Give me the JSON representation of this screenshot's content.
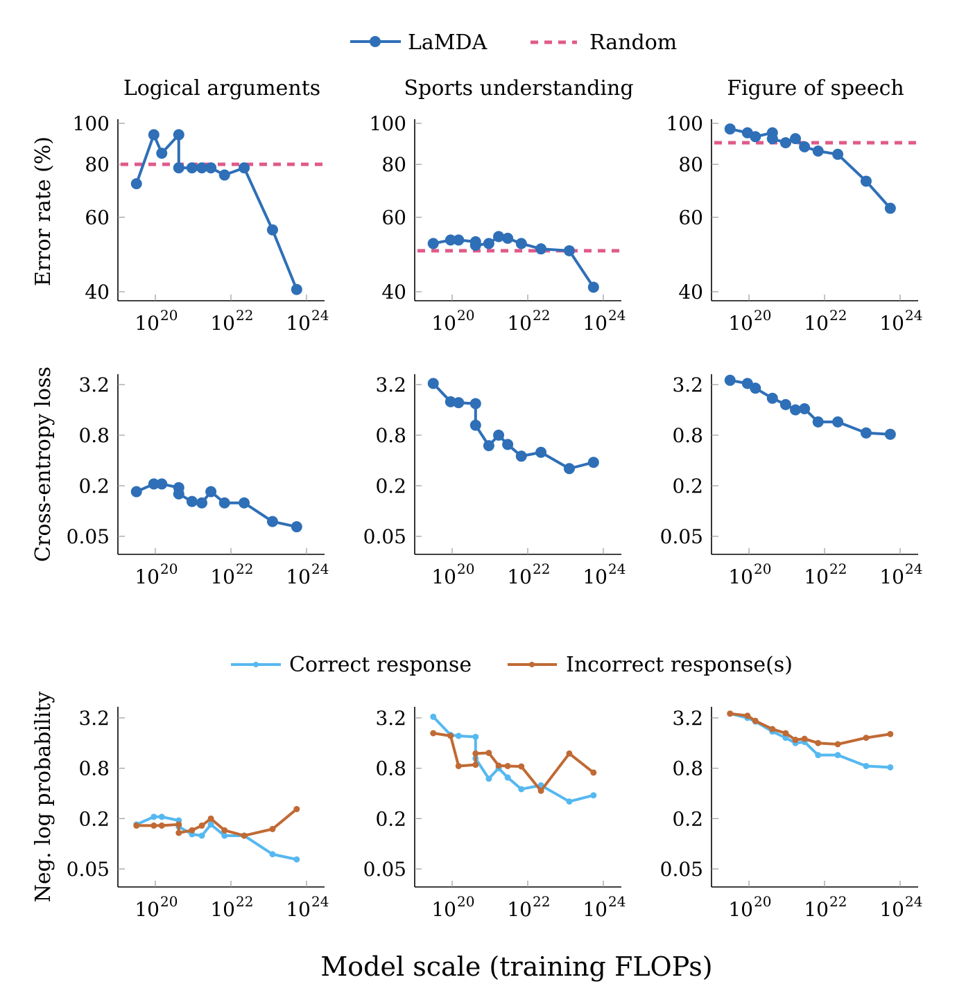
{
  "chart_data": {
    "type": "line",
    "xscale": "log",
    "yscale": "log",
    "xlabel": "Model scale (training FLOPs)",
    "x_ticks": [
      1e+20,
      1e+22,
      1e+24
    ],
    "x_tick_labels": [
      "10",
      "10",
      "10"
    ],
    "x_tick_exponents": [
      "20",
      "22",
      "24"
    ],
    "xlim_log10": [
      19.1,
      24.5
    ],
    "x_log10": [
      19.5,
      19.96,
      20.17,
      20.62,
      20.62,
      20.97,
      21.23,
      21.47,
      21.83,
      22.35,
      23.1,
      23.74
    ],
    "legend_top": [
      {
        "name": "LaMDA",
        "color": "#2E6FB7",
        "style": "solid-marker"
      },
      {
        "name": "Random",
        "color": "#E05A8A",
        "style": "dashed"
      }
    ],
    "legend_bottom": [
      {
        "name": "Correct response",
        "color": "#56B8F0",
        "style": "solid-small-marker"
      },
      {
        "name": "Incorrect response(s)",
        "color": "#C06A35",
        "style": "solid-small-marker"
      }
    ],
    "columns": [
      "Logical arguments",
      "Sports understanding",
      "Figure of speech"
    ],
    "rows": [
      {
        "ylabel": "Error rate (%)",
        "yticks": [
          40,
          60,
          80,
          100
        ],
        "ytick_labels": [
          "40",
          "60",
          "80",
          "100"
        ],
        "ylim": [
          37.5,
          105
        ],
        "panels": [
          {
            "title": "Logical arguments",
            "random": 80,
            "series": [
              {
                "name": "LaMDA",
                "color": "#2E6FB7",
                "x_log10": [
                  19.5,
                  19.96,
                  20.17,
                  20.62,
                  20.62,
                  20.97,
                  21.23,
                  21.47,
                  21.83,
                  22.35,
                  23.1,
                  23.74
                ],
                "values": [
                  72,
                  94,
                  85,
                  94,
                  78.5,
                  78.5,
                  78.5,
                  78.5,
                  75.5,
                  78.5,
                  56,
                  40.5
                ]
              }
            ]
          },
          {
            "title": "Sports understanding",
            "random": 50,
            "series": [
              {
                "name": "LaMDA",
                "color": "#2E6FB7",
                "x_log10": [
                  19.5,
                  19.96,
                  20.17,
                  20.62,
                  20.62,
                  20.97,
                  21.23,
                  21.47,
                  21.83,
                  22.35,
                  23.1,
                  23.74
                ],
                "values": [
                  52,
                  53,
                  53,
                  52.5,
                  51.5,
                  52,
                  54,
                  53.5,
                  52,
                  50.5,
                  50,
                  41
                ]
              }
            ]
          },
          {
            "title": "Figure of speech",
            "random": 90,
            "series": [
              {
                "name": "LaMDA",
                "color": "#2E6FB7",
                "x_log10": [
                  19.5,
                  19.96,
                  20.17,
                  20.62,
                  20.62,
                  20.97,
                  21.23,
                  21.47,
                  21.83,
                  22.35,
                  23.1,
                  23.74
                ],
                "values": [
                  97,
                  95,
                  93,
                  95,
                  92,
                  90,
                  92,
                  88,
                  86,
                  84.5,
                  73,
                  63
                ]
              }
            ]
          }
        ]
      },
      {
        "ylabel": "Cross-entropy loss",
        "yticks": [
          0.05,
          0.2,
          0.8,
          3.2
        ],
        "ytick_labels": [
          "0.05",
          "0.2",
          "0.8",
          "3.2"
        ],
        "ylim": [
          0.03,
          4.5
        ],
        "panels": [
          {
            "title": "Logical arguments",
            "series": [
              {
                "name": "LaMDA",
                "color": "#2E6FB7",
                "x_log10": [
                  19.5,
                  19.96,
                  20.17,
                  20.62,
                  20.62,
                  20.97,
                  21.23,
                  21.47,
                  21.83,
                  22.35,
                  23.1,
                  23.74
                ],
                "values": [
                  0.17,
                  0.21,
                  0.21,
                  0.19,
                  0.16,
                  0.13,
                  0.125,
                  0.17,
                  0.125,
                  0.125,
                  0.075,
                  0.065
                ]
              }
            ]
          },
          {
            "title": "Sports understanding",
            "series": [
              {
                "name": "LaMDA",
                "color": "#2E6FB7",
                "x_log10": [
                  19.5,
                  19.96,
                  20.17,
                  20.62,
                  20.62,
                  20.97,
                  21.23,
                  21.47,
                  21.83,
                  22.35,
                  23.1,
                  23.74
                ],
                "values": [
                  3.3,
                  2.0,
                  1.95,
                  1.9,
                  1.05,
                  0.6,
                  0.8,
                  0.62,
                  0.45,
                  0.5,
                  0.32,
                  0.38
                ]
              }
            ]
          },
          {
            "title": "Figure of speech",
            "series": [
              {
                "name": "LaMDA",
                "color": "#2E6FB7",
                "x_log10": [
                  19.5,
                  19.96,
                  20.17,
                  20.62,
                  20.97,
                  21.23,
                  21.47,
                  21.83,
                  22.35,
                  23.1,
                  23.74
                ],
                "values": [
                  3.6,
                  3.3,
                  2.9,
                  2.2,
                  1.85,
                  1.6,
                  1.65,
                  1.15,
                  1.15,
                  0.85,
                  0.82
                ]
              }
            ]
          }
        ]
      },
      {
        "ylabel": "Neg. log probability",
        "yticks": [
          0.05,
          0.2,
          0.8,
          3.2
        ],
        "ytick_labels": [
          "0.05",
          "0.2",
          "0.8",
          "3.2"
        ],
        "ylim": [
          0.03,
          4.5
        ],
        "panels": [
          {
            "title": "Logical arguments",
            "series": [
              {
                "name": "Correct response",
                "color": "#56B8F0",
                "x_log10": [
                  19.5,
                  19.96,
                  20.17,
                  20.62,
                  20.62,
                  20.97,
                  21.23,
                  21.47,
                  21.83,
                  22.35,
                  23.1,
                  23.74
                ],
                "values": [
                  0.17,
                  0.21,
                  0.21,
                  0.19,
                  0.16,
                  0.13,
                  0.125,
                  0.17,
                  0.125,
                  0.125,
                  0.075,
                  0.065
                ]
              },
              {
                "name": "Incorrect response(s)",
                "color": "#C06A35",
                "x_log10": [
                  19.5,
                  19.96,
                  20.17,
                  20.62,
                  20.62,
                  20.97,
                  21.23,
                  21.47,
                  21.83,
                  22.35,
                  23.1,
                  23.74
                ],
                "values": [
                  0.165,
                  0.165,
                  0.165,
                  0.17,
                  0.135,
                  0.145,
                  0.165,
                  0.2,
                  0.145,
                  0.125,
                  0.15,
                  0.26
                ]
              }
            ]
          },
          {
            "title": "Sports understanding",
            "series": [
              {
                "name": "Correct response",
                "color": "#56B8F0",
                "x_log10": [
                  19.5,
                  19.96,
                  20.17,
                  20.62,
                  20.62,
                  20.97,
                  21.23,
                  21.47,
                  21.83,
                  22.35,
                  23.1,
                  23.74
                ],
                "values": [
                  3.3,
                  2.0,
                  1.95,
                  1.9,
                  1.05,
                  0.6,
                  0.8,
                  0.62,
                  0.45,
                  0.5,
                  0.32,
                  0.38
                ]
              },
              {
                "name": "Incorrect response(s)",
                "color": "#C06A35",
                "x_log10": [
                  19.5,
                  19.96,
                  20.17,
                  20.62,
                  20.62,
                  20.97,
                  21.23,
                  21.47,
                  21.83,
                  22.35,
                  23.1,
                  23.74
                ],
                "values": [
                  2.1,
                  1.95,
                  0.85,
                  0.88,
                  1.2,
                  1.22,
                  0.86,
                  0.85,
                  0.84,
                  0.43,
                  1.2,
                  0.71
                ]
              }
            ]
          },
          {
            "title": "Figure of speech",
            "series": [
              {
                "name": "Correct response",
                "color": "#56B8F0",
                "x_log10": [
                  19.5,
                  19.96,
                  20.17,
                  20.62,
                  20.97,
                  21.23,
                  21.47,
                  21.83,
                  22.35,
                  23.1,
                  23.74
                ],
                "values": [
                  3.6,
                  3.2,
                  2.9,
                  2.2,
                  1.85,
                  1.6,
                  1.65,
                  1.15,
                  1.15,
                  0.85,
                  0.82
                ]
              },
              {
                "name": "Incorrect response(s)",
                "color": "#C06A35",
                "x_log10": [
                  19.5,
                  19.96,
                  20.17,
                  20.62,
                  20.97,
                  21.23,
                  21.47,
                  21.83,
                  22.35,
                  23.1,
                  23.74
                ],
                "values": [
                  3.6,
                  3.4,
                  2.95,
                  2.35,
                  2.1,
                  1.75,
                  1.8,
                  1.6,
                  1.55,
                  1.85,
                  2.05
                ]
              }
            ]
          }
        ]
      }
    ]
  }
}
